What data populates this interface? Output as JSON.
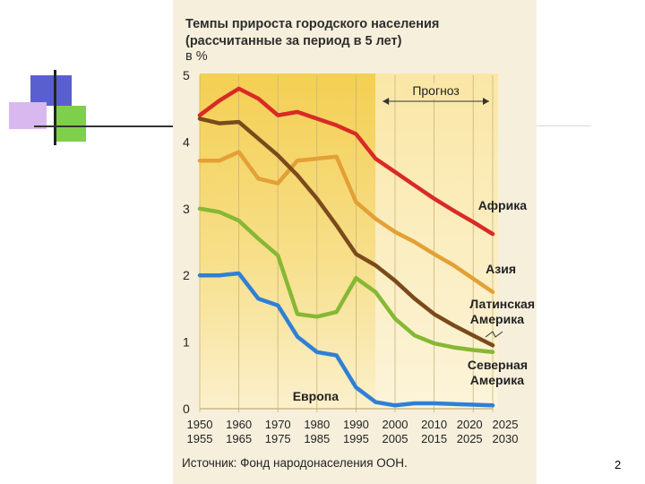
{
  "slide": {
    "number": "2"
  },
  "colors": {
    "historic_bg": "#f6d874",
    "forecast_bg": "#fbeab0",
    "panel_bg": "#f6efdc",
    "africa": "#d92a26",
    "asia": "#e3a036",
    "latin_america": "#7a4a1c",
    "north_america": "#86b834",
    "europe": "#2f7fd6"
  },
  "chart_data": {
    "type": "line",
    "title_lines": [
      "Темпы прироста городского населения",
      "(рассчитанные за период в 5 лет)",
      "в %"
    ],
    "forecast_label": "Прогноз",
    "forecast_start": 1997.5,
    "xlim": [
      1952.5,
      2027.5
    ],
    "ylim": [
      0,
      5
    ],
    "y_ticks": [
      "0",
      "1",
      "2",
      "3",
      "4",
      "5"
    ],
    "x_tick_labels": [
      {
        "x": 1952.5,
        "top": "1950",
        "bottom": "1955"
      },
      {
        "x": 1962.5,
        "top": "1960",
        "bottom": "1965"
      },
      {
        "x": 1972.5,
        "top": "1970",
        "bottom": "1975"
      },
      {
        "x": 1982.5,
        "top": "1980",
        "bottom": "1985"
      },
      {
        "x": 1992.5,
        "top": "1990",
        "bottom": "1995"
      },
      {
        "x": 2002.5,
        "top": "2000",
        "bottom": "2005"
      },
      {
        "x": 2012.5,
        "top": "2010",
        "bottom": "2015"
      },
      {
        "x": 2022.5,
        "top": "2020",
        "bottom": "2025"
      },
      {
        "x": 2027.5,
        "top": "2025",
        "bottom": "2030"
      }
    ],
    "x": [
      1952.5,
      1957.5,
      1962.5,
      1967.5,
      1972.5,
      1977.5,
      1982.5,
      1987.5,
      1992.5,
      1997.5,
      2002.5,
      2007.5,
      2012.5,
      2017.5,
      2022.5,
      2027.5
    ],
    "series": [
      {
        "key": "africa",
        "name": "Африка",
        "label_lines": [
          "Африка"
        ],
        "values": [
          4.4,
          4.62,
          4.8,
          4.65,
          4.4,
          4.45,
          4.35,
          4.25,
          4.12,
          3.75,
          3.55,
          3.35,
          3.15,
          2.97,
          2.8,
          2.62
        ]
      },
      {
        "key": "asia",
        "name": "Азия",
        "label_lines": [
          "Азия"
        ],
        "values": [
          3.72,
          3.72,
          3.85,
          3.45,
          3.38,
          3.72,
          3.75,
          3.78,
          3.1,
          2.85,
          2.65,
          2.5,
          2.32,
          2.15,
          1.95,
          1.75
        ]
      },
      {
        "key": "latin_america",
        "name": "Латинская Америка",
        "label_lines": [
          "Латинская",
          "Америка"
        ],
        "values": [
          4.35,
          4.28,
          4.3,
          4.05,
          3.8,
          3.5,
          3.15,
          2.75,
          2.32,
          2.15,
          1.92,
          1.65,
          1.42,
          1.25,
          1.1,
          0.95
        ]
      },
      {
        "key": "north_america",
        "name": "Северная Америка",
        "label_lines": [
          "Северная",
          "Америка"
        ],
        "values": [
          3.0,
          2.95,
          2.82,
          2.55,
          2.3,
          1.42,
          1.38,
          1.45,
          1.96,
          1.75,
          1.35,
          1.1,
          0.98,
          0.92,
          0.88,
          0.85
        ]
      },
      {
        "key": "europe",
        "name": "Европа",
        "label_lines": [
          "Европа"
        ],
        "values": [
          2.0,
          2.0,
          2.03,
          1.65,
          1.55,
          1.08,
          0.85,
          0.8,
          0.32,
          0.1,
          0.05,
          0.08,
          0.08,
          0.07,
          0.06,
          0.05
        ]
      }
    ],
    "source": "Источник: Фонд народонаселения ООН."
  }
}
